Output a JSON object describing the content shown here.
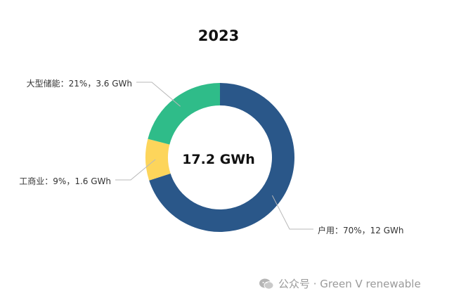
{
  "chart_data": {
    "type": "pie",
    "title": "2023",
    "center_label": "17.2 GWh",
    "slices": [
      {
        "name": "户用",
        "percent": 70,
        "energy": "12 GWh",
        "label": "户用：70%，12 GWh",
        "color": "#2a5789"
      },
      {
        "name": "工商业",
        "percent": 9,
        "energy": "1.6 GWh",
        "label": "工商业：9%，1.6 GWh",
        "color": "#fdd55b"
      },
      {
        "name": "大型储能",
        "percent": 21,
        "energy": "3.6 GWh",
        "label": "大型储能：21%，3.6 GWh",
        "color": "#2fbc89"
      }
    ]
  },
  "watermark": {
    "text": "公众号 · Green V renewable",
    "icon": "wechat-icon"
  }
}
